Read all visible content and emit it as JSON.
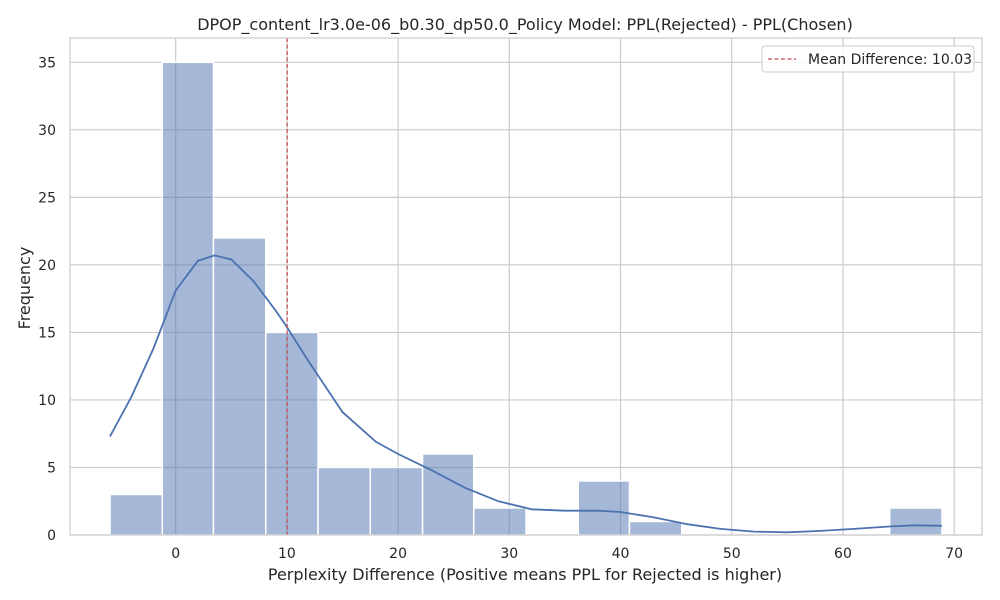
{
  "chart_data": {
    "type": "histogram",
    "title": "DPOP_content_lr3.0e-06_b0.30_dp50.0_Policy Model: PPL(Rejected) - PPL(Chosen)",
    "xlabel": "Perplexity Difference (Positive means PPL for Rejected is higher)",
    "ylabel": "Frequency",
    "xlim": [
      -9.5,
      72.5
    ],
    "ylim": [
      0,
      36.8
    ],
    "xticks": [
      0,
      10,
      20,
      30,
      40,
      50,
      60,
      70
    ],
    "yticks": [
      0,
      5,
      10,
      15,
      20,
      25,
      30,
      35
    ],
    "grid": true,
    "bins": [
      {
        "x0": -5.9,
        "x1": -1.2,
        "count": 3
      },
      {
        "x0": -1.2,
        "x1": 3.4,
        "count": 35
      },
      {
        "x0": 3.4,
        "x1": 8.1,
        "count": 22
      },
      {
        "x0": 8.1,
        "x1": 12.8,
        "count": 15
      },
      {
        "x0": 12.8,
        "x1": 17.5,
        "count": 5
      },
      {
        "x0": 17.5,
        "x1": 22.2,
        "count": 5
      },
      {
        "x0": 22.2,
        "x1": 26.8,
        "count": 6
      },
      {
        "x0": 26.8,
        "x1": 31.5,
        "count": 2
      },
      {
        "x0": 31.5,
        "x1": 36.2,
        "count": 0
      },
      {
        "x0": 36.2,
        "x1": 40.8,
        "count": 4
      },
      {
        "x0": 40.8,
        "x1": 45.5,
        "count": 1
      },
      {
        "x0": 45.5,
        "x1": 50.2,
        "count": 0
      },
      {
        "x0": 50.2,
        "x1": 54.9,
        "count": 0
      },
      {
        "x0": 54.9,
        "x1": 59.6,
        "count": 0
      },
      {
        "x0": 59.6,
        "x1": 64.2,
        "count": 0
      },
      {
        "x0": 64.2,
        "x1": 68.9,
        "count": 2
      }
    ],
    "kde": [
      {
        "x": -5.9,
        "y": 7.3
      },
      {
        "x": -4,
        "y": 10.2
      },
      {
        "x": -2,
        "y": 13.8
      },
      {
        "x": 0,
        "y": 18.1
      },
      {
        "x": 2,
        "y": 20.3
      },
      {
        "x": 3.5,
        "y": 20.7
      },
      {
        "x": 5,
        "y": 20.4
      },
      {
        "x": 7,
        "y": 18.8
      },
      {
        "x": 9,
        "y": 16.6
      },
      {
        "x": 10,
        "y": 15.4
      },
      {
        "x": 12,
        "y": 12.8
      },
      {
        "x": 15,
        "y": 9.1
      },
      {
        "x": 18,
        "y": 6.9
      },
      {
        "x": 20,
        "y": 6.0
      },
      {
        "x": 23,
        "y": 4.8
      },
      {
        "x": 26,
        "y": 3.5
      },
      {
        "x": 29,
        "y": 2.5
      },
      {
        "x": 32,
        "y": 1.9
      },
      {
        "x": 35,
        "y": 1.8
      },
      {
        "x": 38,
        "y": 1.8
      },
      {
        "x": 40,
        "y": 1.7
      },
      {
        "x": 43,
        "y": 1.3
      },
      {
        "x": 46,
        "y": 0.8
      },
      {
        "x": 49,
        "y": 0.45
      },
      {
        "x": 52,
        "y": 0.25
      },
      {
        "x": 55,
        "y": 0.2
      },
      {
        "x": 58,
        "y": 0.3
      },
      {
        "x": 61,
        "y": 0.45
      },
      {
        "x": 64,
        "y": 0.62
      },
      {
        "x": 66.5,
        "y": 0.72
      },
      {
        "x": 68.9,
        "y": 0.68
      }
    ],
    "mean_line": {
      "x": 10.03,
      "label": "Mean Difference: 10.03"
    },
    "legend_position": "top-right",
    "colors": {
      "bar_fill": "#4c72b0",
      "bar_alpha": 0.5,
      "kde_line": "#4c72b0",
      "mean_line": "#c44e52",
      "grid": "#cccccc",
      "frame": "#cccccc"
    }
  }
}
